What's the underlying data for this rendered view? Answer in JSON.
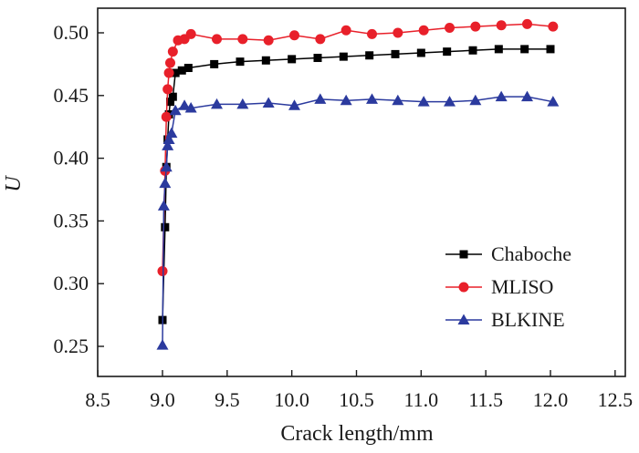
{
  "chart_data": {
    "type": "line",
    "title": "",
    "xlabel": "Crack length/mm",
    "ylabel": "U",
    "xlim": [
      8.5,
      12.5
    ],
    "ylim": [
      0.24,
      0.525
    ],
    "xticks": [
      "8.5",
      "9.0",
      "9.5",
      "10.0",
      "10.5",
      "11.0",
      "11.5",
      "12.0",
      "12.5"
    ],
    "yticks": [
      "0.25",
      "0.30",
      "0.35",
      "0.40",
      "0.45",
      "0.50"
    ],
    "grid": false,
    "legend_position": "center-right",
    "series": [
      {
        "name": "Chaboche",
        "color": "#000000",
        "marker": "square",
        "x": [
          9.0,
          9.02,
          9.03,
          9.04,
          9.05,
          9.06,
          9.08,
          9.1,
          9.15,
          9.2,
          9.4,
          9.6,
          9.8,
          10.0,
          10.2,
          10.4,
          10.6,
          10.8,
          11.0,
          11.2,
          11.4,
          11.6,
          11.8,
          12.0
        ],
        "y": [
          0.271,
          0.345,
          0.393,
          0.415,
          0.435,
          0.445,
          0.449,
          0.468,
          0.47,
          0.472,
          0.475,
          0.477,
          0.478,
          0.479,
          0.48,
          0.481,
          0.482,
          0.483,
          0.484,
          0.485,
          0.486,
          0.487,
          0.487,
          0.487
        ]
      },
      {
        "name": "MLISO",
        "color": "#e8202a",
        "marker": "circle",
        "x": [
          9.0,
          9.02,
          9.03,
          9.04,
          9.05,
          9.06,
          9.08,
          9.12,
          9.17,
          9.22,
          9.42,
          9.62,
          9.82,
          10.02,
          10.22,
          10.42,
          10.62,
          10.82,
          11.02,
          11.22,
          11.42,
          11.62,
          11.82,
          12.02
        ],
        "y": [
          0.31,
          0.39,
          0.433,
          0.455,
          0.468,
          0.476,
          0.485,
          0.494,
          0.495,
          0.499,
          0.495,
          0.495,
          0.494,
          0.498,
          0.495,
          0.502,
          0.499,
          0.5,
          0.502,
          0.504,
          0.505,
          0.506,
          0.507,
          0.505
        ]
      },
      {
        "name": "BLKINE",
        "color": "#2b3a9e",
        "marker": "triangle",
        "x": [
          9.0,
          9.01,
          9.02,
          9.03,
          9.04,
          9.05,
          9.07,
          9.1,
          9.17,
          9.22,
          9.42,
          9.62,
          9.82,
          10.02,
          10.22,
          10.42,
          10.62,
          10.82,
          11.02,
          11.22,
          11.42,
          11.62,
          11.82,
          12.02
        ],
        "y": [
          0.251,
          0.362,
          0.38,
          0.393,
          0.41,
          0.415,
          0.42,
          0.438,
          0.442,
          0.44,
          0.443,
          0.443,
          0.444,
          0.442,
          0.447,
          0.446,
          0.447,
          0.446,
          0.445,
          0.445,
          0.446,
          0.449,
          0.449,
          0.445
        ]
      }
    ]
  }
}
